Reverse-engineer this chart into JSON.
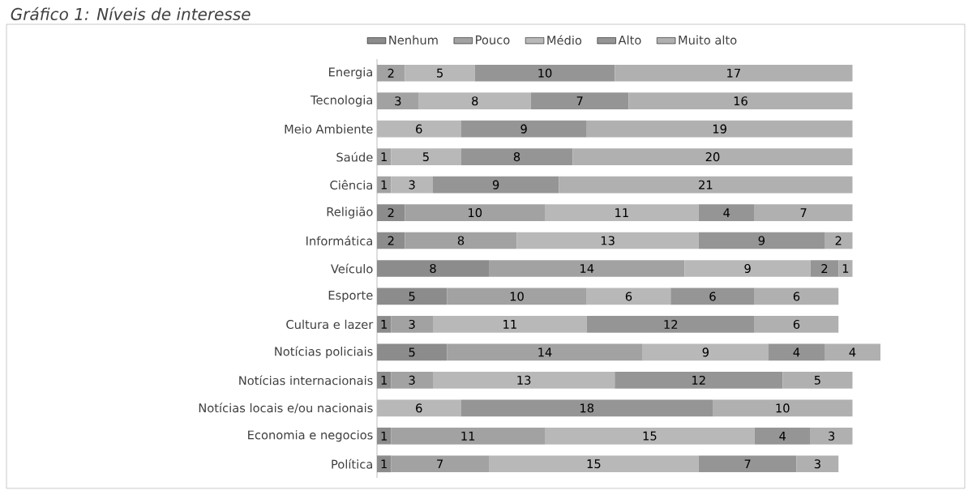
{
  "chart_data": {
    "type": "bar",
    "orientation": "horizontal",
    "stacked": true,
    "data_labels": true,
    "legend": "top",
    "title": "Gráfico 1: Níveis de interesse",
    "categories": [
      "Energia",
      "Tecnologia",
      "Meio Ambiente",
      "Saúde",
      "Ciência",
      "Religião",
      "Informática",
      "Veículo",
      "Esporte",
      "Cultura e lazer",
      "Notícias policiais",
      "Notícias internacionais",
      "Notícias locais e/ou nacionais",
      "Economia e negocios",
      "Política"
    ],
    "series": [
      {
        "name": "Nenhum",
        "color": "#8c8c8c",
        "values": [
          null,
          null,
          null,
          null,
          null,
          2,
          2,
          8,
          5,
          1,
          5,
          1,
          null,
          1,
          1
        ]
      },
      {
        "name": "Pouco",
        "color": "#a2a2a2",
        "values": [
          2,
          3,
          null,
          1,
          1,
          10,
          8,
          14,
          10,
          3,
          14,
          3,
          null,
          11,
          7
        ]
      },
      {
        "name": "Médio",
        "color": "#b8b8b8",
        "values": [
          5,
          8,
          6,
          5,
          3,
          11,
          13,
          9,
          6,
          11,
          9,
          13,
          6,
          15,
          15
        ]
      },
      {
        "name": "Alto",
        "color": "#959595",
        "values": [
          10,
          7,
          9,
          8,
          9,
          4,
          9,
          2,
          6,
          12,
          4,
          12,
          18,
          4,
          7
        ]
      },
      {
        "name": "Muito alto",
        "color": "#b0b0b0",
        "values": [
          17,
          16,
          19,
          20,
          21,
          7,
          2,
          1,
          6,
          6,
          4,
          5,
          10,
          3,
          3
        ]
      }
    ]
  }
}
